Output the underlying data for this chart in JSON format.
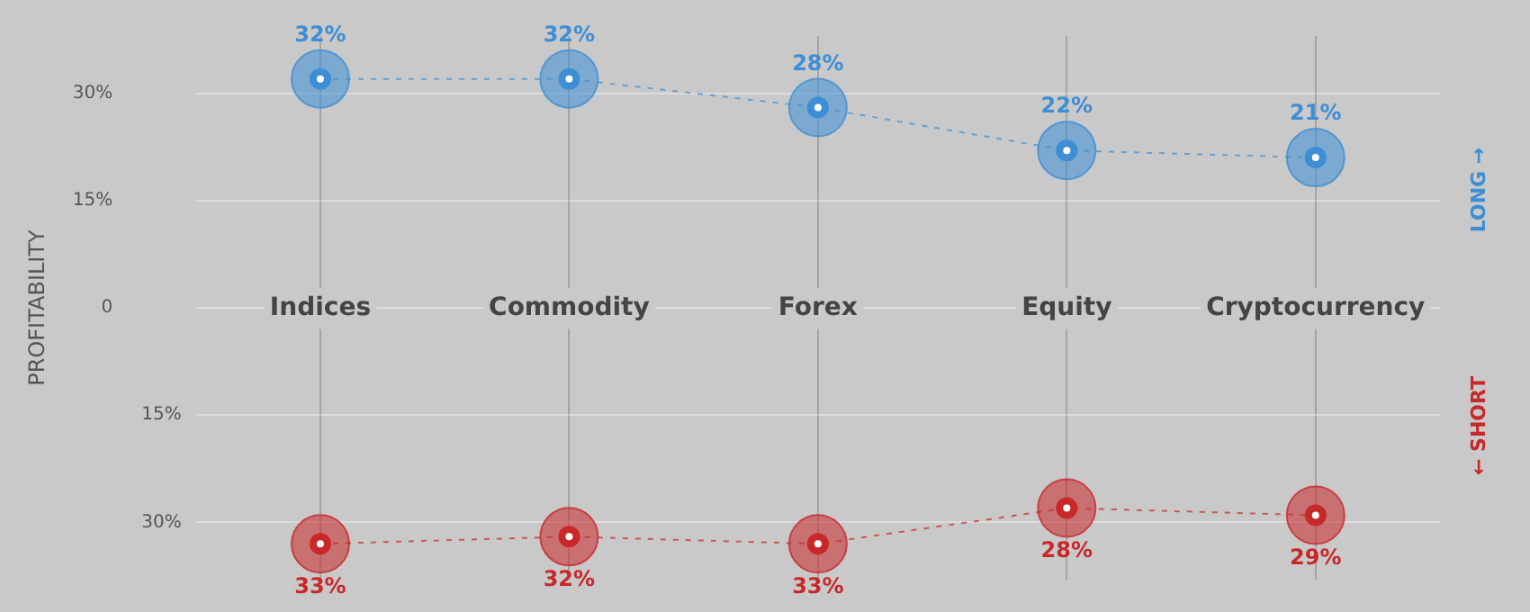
{
  "chart_data": {
    "type": "line",
    "ylabel": "PROFITABILITY",
    "categories": [
      "Indices",
      "Commodity",
      "Forex",
      "Equity",
      "Cryptocurrency"
    ],
    "series": [
      {
        "name": "LONG →",
        "color": "#3d8ed4",
        "values": [
          32,
          32,
          28,
          22,
          21
        ],
        "value_labels": [
          "32%",
          "32%",
          "28%",
          "22%",
          "21%"
        ]
      },
      {
        "name": "← SHORT",
        "color": "#c8282a",
        "axis": "y2",
        "values": [
          33,
          32,
          33,
          28,
          29
        ],
        "value_labels": [
          "33%",
          "32%",
          "33%",
          "28%",
          "29%"
        ]
      }
    ],
    "ylim": [
      -38,
      38
    ],
    "yticks": [
      0,
      {
        "value": 15,
        "label": "15%"
      },
      {
        "value": 30,
        "label": "30%"
      }
    ],
    "y2lim": [
      38,
      -38
    ],
    "y2ticks": [
      {
        "value": 15,
        "label": "15%"
      },
      {
        "value": 30,
        "label": "30%"
      }
    ],
    "grid": true,
    "marker": "circle",
    "line_style": "dashed",
    "legend": false
  }
}
